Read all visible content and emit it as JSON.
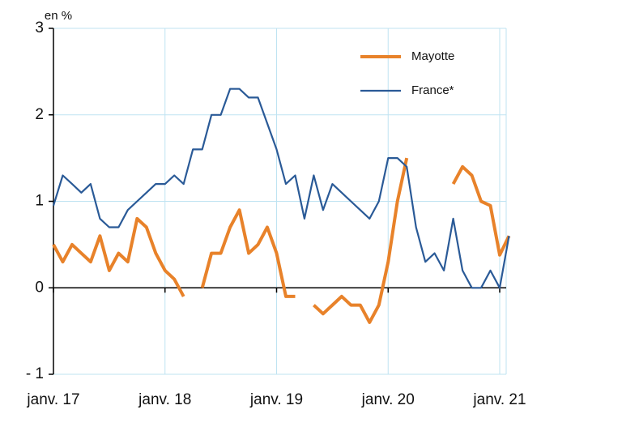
{
  "chart_data": {
    "type": "line",
    "y_unit_label": "en %",
    "categories": [
      "janv. 17",
      null,
      null,
      null,
      null,
      null,
      null,
      null,
      null,
      null,
      null,
      null,
      "janv. 18",
      null,
      null,
      null,
      null,
      null,
      null,
      null,
      null,
      null,
      null,
      null,
      "janv. 19",
      null,
      null,
      null,
      null,
      null,
      null,
      null,
      null,
      null,
      null,
      null,
      "janv. 20",
      null,
      null,
      null,
      null,
      null,
      null,
      null,
      null,
      null,
      null,
      null,
      "janv. 21",
      null
    ],
    "series": [
      {
        "name": "Mayotte",
        "color": "#e8822a",
        "values": [
          0.5,
          0.3,
          0.5,
          0.4,
          0.3,
          0.6,
          0.2,
          0.4,
          0.3,
          0.8,
          0.7,
          0.4,
          0.2,
          0.1,
          -0.1,
          null,
          0.0,
          0.4,
          0.4,
          0.7,
          0.9,
          0.4,
          0.5,
          0.7,
          0.4,
          -0.1,
          -0.1,
          null,
          -0.2,
          -0.3,
          -0.2,
          -0.1,
          -0.2,
          -0.2,
          -0.4,
          -0.2,
          0.3,
          1.0,
          1.5,
          null,
          null,
          null,
          null,
          1.2,
          1.4,
          1.3,
          1.0,
          0.95,
          0.38,
          0.6
        ]
      },
      {
        "name": "France*",
        "color": "#2a5a97",
        "values": [
          0.95,
          1.3,
          1.2,
          1.1,
          1.2,
          0.8,
          0.7,
          0.7,
          0.9,
          1.0,
          1.1,
          1.2,
          1.2,
          1.3,
          1.2,
          1.6,
          1.6,
          2.0,
          2.0,
          2.3,
          2.3,
          2.2,
          2.2,
          1.9,
          1.6,
          1.2,
          1.3,
          0.8,
          1.3,
          0.9,
          1.2,
          1.1,
          1.0,
          0.9,
          0.8,
          1.0,
          1.5,
          1.5,
          1.4,
          0.7,
          0.3,
          0.4,
          0.2,
          0.8,
          0.2,
          0.0,
          0.0,
          0.2,
          0.0,
          0.6
        ]
      }
    ],
    "ylim": [
      -1,
      3
    ],
    "yticks": [
      {
        "value": -1,
        "label": "- 1"
      },
      0,
      1,
      2,
      3
    ],
    "grid": true,
    "legend": "upper right"
  }
}
